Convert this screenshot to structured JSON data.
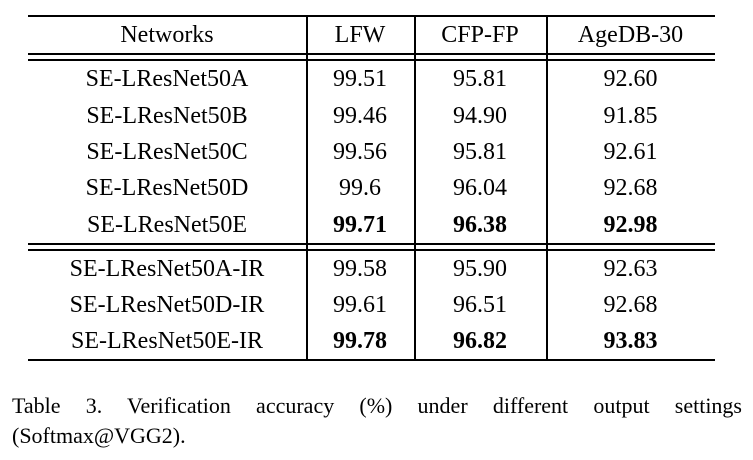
{
  "colors": {
    "background": "#ffffff",
    "text": "#000000",
    "rule": "#000000"
  },
  "table": {
    "columns": [
      "Networks",
      "LFW",
      "CFP-FP",
      "AgeDB-30"
    ],
    "sections": [
      {
        "rows": [
          {
            "network": "SE-LResNet50A",
            "values": [
              "99.51",
              "95.81",
              "92.60"
            ],
            "bold": false
          },
          {
            "network": "SE-LResNet50B",
            "values": [
              "99.46",
              "94.90",
              "91.85"
            ],
            "bold": false
          },
          {
            "network": "SE-LResNet50C",
            "values": [
              "99.56",
              "95.81",
              "92.61"
            ],
            "bold": false
          },
          {
            "network": "SE-LResNet50D",
            "values": [
              "99.6",
              "96.04",
              "92.68"
            ],
            "bold": false
          },
          {
            "network": "SE-LResNet50E",
            "values": [
              "99.71",
              "96.38",
              "92.98"
            ],
            "bold": true
          }
        ]
      },
      {
        "rows": [
          {
            "network": "SE-LResNet50A-IR",
            "values": [
              "99.58",
              "95.90",
              "92.63"
            ],
            "bold": false
          },
          {
            "network": "SE-LResNet50D-IR",
            "values": [
              "99.61",
              "96.51",
              "92.68"
            ],
            "bold": false
          },
          {
            "network": "SE-LResNet50E-IR",
            "values": [
              "99.78",
              "96.82",
              "93.83"
            ],
            "bold": true
          }
        ]
      }
    ]
  },
  "caption": {
    "line1": "Table 3. Verification accuracy (%) under different output settings",
    "line2": "(Softmax@VGG2).",
    "full_text": "Table 3. Verification accuracy (%) under different output settings (Softmax@VGG2)."
  }
}
